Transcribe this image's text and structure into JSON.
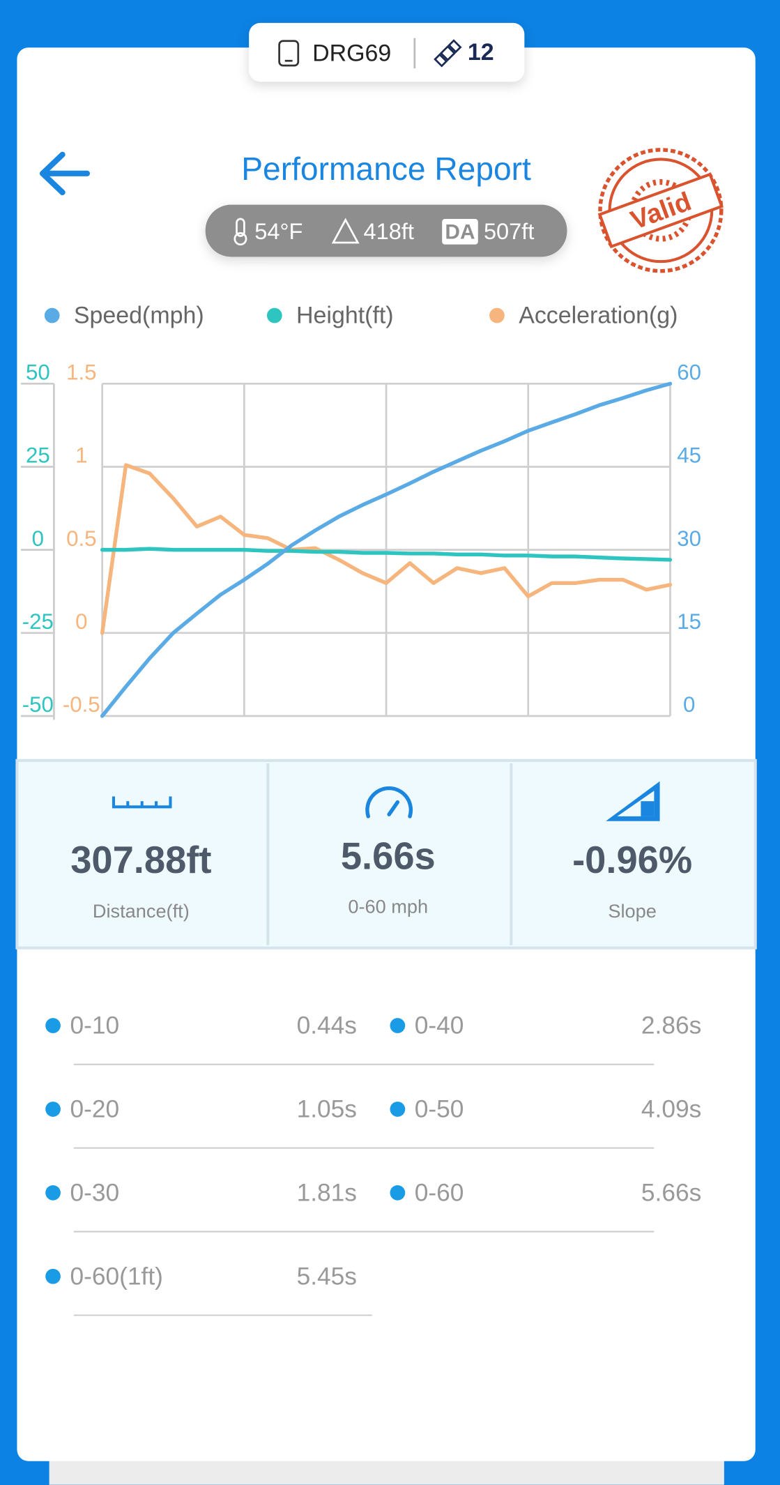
{
  "header": {
    "device": "DRG69",
    "count": "12"
  },
  "title": "Performance Report",
  "conditions": {
    "temperature": "54°F",
    "altitude": "418ft",
    "da_label": "DA",
    "density_altitude": "507ft"
  },
  "stamp": "Valid",
  "chart_data": {
    "type": "line",
    "series": [
      {
        "name": "Speed(mph)",
        "color": "#5aabe5",
        "axis": "y2",
        "values": [
          0,
          5.3,
          10.4,
          15,
          18.5,
          21.9,
          24.6,
          27.5,
          30.8,
          33.5,
          36,
          38.1,
          40,
          42,
          44.1,
          46,
          47.9,
          49.6,
          51.5,
          53,
          54.5,
          56.1,
          57.4,
          58.8,
          60
        ]
      },
      {
        "name": "Height(ft)",
        "color": "#2ec4c0",
        "axis": "y",
        "values": [
          0,
          0,
          0.3,
          0,
          0,
          0,
          0,
          -0.3,
          -0.3,
          -0.6,
          -0.6,
          -0.9,
          -0.9,
          -1.1,
          -1.1,
          -1.4,
          -1.4,
          -1.7,
          -1.7,
          -2,
          -2,
          -2.3,
          -2.6,
          -2.8,
          -3
        ]
      },
      {
        "name": "Acceleration(g)",
        "color": "#f7b57e",
        "axis": "y3",
        "values": [
          0,
          1.01,
          0.96,
          0.81,
          0.64,
          0.7,
          0.59,
          0.57,
          0.5,
          0.51,
          0.44,
          0.36,
          0.3,
          0.42,
          0.3,
          0.39,
          0.36,
          0.39,
          0.22,
          0.3,
          0.3,
          0.32,
          0.32,
          0.26,
          0.29
        ]
      }
    ],
    "ylim": [
      -50,
      50
    ],
    "yticks": [
      50,
      25,
      0,
      -25,
      -50
    ],
    "y2lim": [
      0,
      60
    ],
    "y2ticks": [
      60,
      45,
      30,
      15,
      0
    ],
    "y3lim": [
      -0.5,
      1.5
    ],
    "y3ticks": [
      1.5,
      1,
      0.5,
      0,
      -0.5
    ],
    "grid": true
  },
  "stats": [
    {
      "value": "307.88ft",
      "label": "Distance(ft)"
    },
    {
      "value": "5.66s",
      "label": "0-60 mph"
    },
    {
      "value": "-0.96%",
      "label": "Slope"
    }
  ],
  "splits": [
    {
      "label": "0-10",
      "time": "0.44s"
    },
    {
      "label": "0-40",
      "time": "2.86s"
    },
    {
      "label": "0-20",
      "time": "1.05s"
    },
    {
      "label": "0-50",
      "time": "4.09s"
    },
    {
      "label": "0-30",
      "time": "1.81s"
    },
    {
      "label": "0-60",
      "time": "5.66s"
    },
    {
      "label": "0-60(1ft)",
      "time": "5.45s"
    }
  ]
}
